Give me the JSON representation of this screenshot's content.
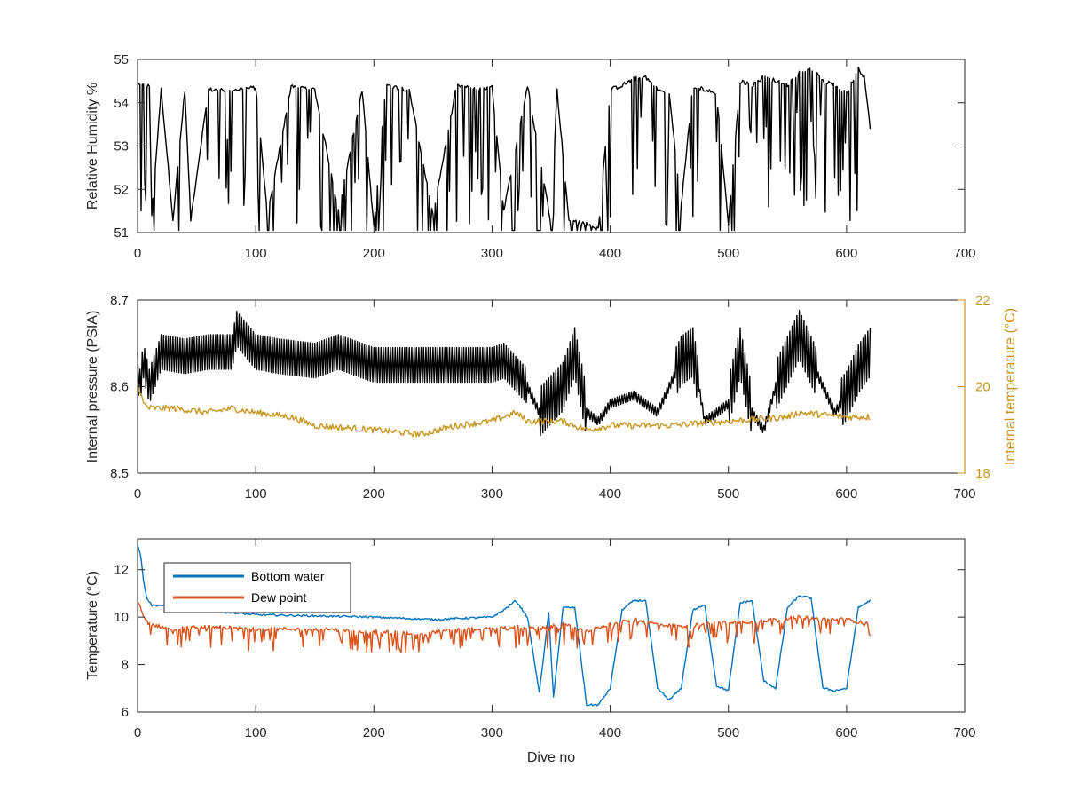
{
  "chart_data": [
    {
      "type": "line",
      "title": "",
      "xlabel": "",
      "ylabel": "Relative Humidity %",
      "xlim": [
        0,
        700
      ],
      "ylim": [
        51,
        55
      ],
      "xticks": [
        "0",
        "100",
        "200",
        "300",
        "400",
        "500",
        "600",
        "700"
      ],
      "yticks": [
        "51",
        "52",
        "53",
        "54",
        "55"
      ],
      "grid": false,
      "series": [
        {
          "color": "#000000",
          "x": [
            0,
            10,
            12,
            20,
            30,
            40,
            45,
            60,
            80,
            100,
            110,
            130,
            150,
            170,
            190,
            200,
            210,
            230,
            250,
            270,
            290,
            300,
            310,
            330,
            350,
            355,
            365,
            380,
            390,
            400,
            410,
            420,
            430,
            440,
            450,
            460,
            470,
            490,
            500,
            510,
            520,
            530,
            540,
            550,
            560,
            570,
            580,
            590,
            600,
            610,
            615,
            620
          ],
          "y": [
            54.4,
            54.4,
            51.4,
            54.3,
            51.3,
            54.3,
            51.3,
            54.3,
            54.3,
            54.35,
            51.4,
            54.4,
            54.3,
            51.5,
            54.3,
            51.1,
            54.4,
            54.3,
            51.4,
            54.4,
            54.3,
            54.35,
            51.5,
            54.4,
            51.2,
            54.3,
            51.3,
            51.2,
            51.1,
            54.3,
            54.4,
            54.55,
            54.6,
            54.3,
            54.2,
            51.6,
            54.4,
            54.2,
            51.2,
            54.5,
            54.4,
            54.6,
            54.5,
            54.4,
            54.7,
            54.8,
            54.5,
            54.4,
            54.2,
            54.8,
            54.6,
            53.4
          ]
        }
      ]
    },
    {
      "type": "line",
      "title": "",
      "xlabel": "",
      "ylabel": "Internal pressure (PSIA)",
      "y2label": "Internal temperature (°C)",
      "xlim": [
        0,
        700
      ],
      "ylim": [
        8.5,
        8.7
      ],
      "y2lim": [
        18,
        22
      ],
      "xticks": [
        "0",
        "100",
        "200",
        "300",
        "400",
        "500",
        "600",
        "700"
      ],
      "yticks": [
        "8.5",
        "8.6",
        "8.7"
      ],
      "y2ticks": [
        "18",
        "20",
        "22"
      ],
      "grid": false,
      "series": [
        {
          "axis": "left",
          "color": "#000000",
          "x": [
            0,
            2,
            5,
            10,
            20,
            40,
            60,
            80,
            84,
            100,
            120,
            150,
            170,
            200,
            250,
            300,
            310,
            330,
            340,
            360,
            370,
            380,
            390,
            400,
            420,
            440,
            460,
            470,
            480,
            500,
            510,
            520,
            530,
            540,
            560,
            570,
            590,
            600,
            610,
            620
          ],
          "y": [
            8.62,
            8.6,
            8.63,
            8.6,
            8.64,
            8.635,
            8.64,
            8.64,
            8.667,
            8.64,
            8.635,
            8.63,
            8.64,
            8.625,
            8.625,
            8.625,
            8.63,
            8.6,
            8.57,
            8.6,
            8.64,
            8.57,
            8.56,
            8.58,
            8.59,
            8.57,
            8.63,
            8.64,
            8.56,
            8.58,
            8.64,
            8.57,
            8.55,
            8.6,
            8.66,
            8.63,
            8.57,
            8.59,
            8.62,
            8.64
          ]
        },
        {
          "axis": "right",
          "color": "#c8961e",
          "x": [
            0,
            5,
            10,
            30,
            60,
            80,
            100,
            130,
            150,
            200,
            240,
            270,
            300,
            320,
            330,
            360,
            380,
            400,
            450,
            500,
            550,
            560,
            600,
            620
          ],
          "y": [
            20.1,
            19.6,
            19.5,
            19.5,
            19.4,
            19.5,
            19.4,
            19.3,
            19.1,
            19.0,
            18.9,
            19.1,
            19.2,
            19.4,
            19.2,
            19.2,
            19.0,
            19.1,
            19.1,
            19.2,
            19.3,
            19.4,
            19.3,
            19.3
          ]
        }
      ]
    },
    {
      "type": "line",
      "title": "",
      "xlabel": "Dive no",
      "ylabel": "Temperature (°C)",
      "xlim": [
        0,
        700
      ],
      "ylim": [
        6,
        13.3
      ],
      "xticks": [
        "0",
        "100",
        "200",
        "300",
        "400",
        "500",
        "600",
        "700"
      ],
      "yticks": [
        "6",
        "8",
        "10",
        "12"
      ],
      "grid": false,
      "legend": "top-left",
      "series": [
        {
          "name": "Bottom water",
          "color": "#0072bd",
          "x": [
            0,
            3,
            5,
            8,
            12,
            20,
            50,
            100,
            200,
            250,
            300,
            310,
            320,
            330,
            340,
            348,
            352,
            360,
            370,
            380,
            390,
            400,
            410,
            420,
            430,
            440,
            450,
            460,
            470,
            480,
            490,
            500,
            510,
            520,
            530,
            540,
            550,
            560,
            570,
            580,
            590,
            600,
            610,
            620
          ],
          "y": [
            13.1,
            12.5,
            11.5,
            10.8,
            10.5,
            10.5,
            10.3,
            10.1,
            10.0,
            9.9,
            10.0,
            10.3,
            10.7,
            10.0,
            6.8,
            10.2,
            6.6,
            10.4,
            10.4,
            6.3,
            6.3,
            7.0,
            10.3,
            10.7,
            10.7,
            7.0,
            6.5,
            7.0,
            10.3,
            10.5,
            7.1,
            6.9,
            10.6,
            10.7,
            7.3,
            7.0,
            10.4,
            10.9,
            10.8,
            7.0,
            6.9,
            7.0,
            10.4,
            10.7
          ]
        },
        {
          "name": "Dew point",
          "color": "#d95319",
          "x": [
            0,
            5,
            10,
            30,
            60,
            100,
            150,
            200,
            240,
            270,
            300,
            320,
            340,
            360,
            380,
            400,
            420,
            440,
            460,
            480,
            500,
            520,
            540,
            560,
            580,
            600,
            620
          ],
          "y": [
            10.7,
            10.0,
            9.7,
            9.5,
            9.6,
            9.5,
            9.5,
            9.4,
            9.3,
            9.5,
            9.5,
            9.6,
            9.5,
            9.7,
            9.4,
            9.7,
            9.9,
            9.7,
            9.6,
            9.7,
            9.8,
            9.8,
            9.9,
            10.0,
            9.9,
            9.9,
            9.7
          ]
        }
      ]
    }
  ]
}
